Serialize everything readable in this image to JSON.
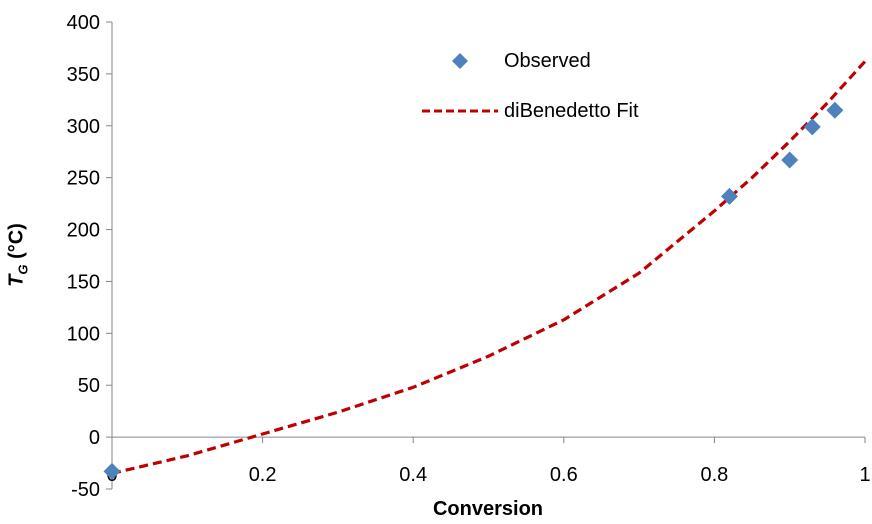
{
  "chart_data": {
    "type": "scatter",
    "xlabel": "Conversion",
    "ylabel": {
      "prefix": "T",
      "subscript": "G",
      "suffix": " (°C)"
    },
    "xlim": [
      0,
      1
    ],
    "ylim": [
      -50,
      400
    ],
    "xticks": [
      0,
      0.2,
      0.4,
      0.6,
      0.8,
      1
    ],
    "xtick_labels": [
      "0",
      "0.2",
      "0.4",
      "0.6",
      "0.8",
      "1"
    ],
    "yticks": [
      -50,
      0,
      50,
      100,
      150,
      200,
      250,
      300,
      350,
      400
    ],
    "ytick_labels": [
      "-50",
      "0",
      "50",
      "100",
      "150",
      "200",
      "250",
      "300",
      "350",
      "400"
    ],
    "grid": false,
    "legend_position": "top-right",
    "series": [
      {
        "name": "Observed",
        "kind": "markers",
        "marker": "diamond",
        "color": "#4F81BD",
        "x": [
          0,
          0.82,
          0.9,
          0.93,
          0.96
        ],
        "y": [
          -33,
          232,
          267,
          299,
          315
        ]
      },
      {
        "name": "diBenedetto Fit",
        "kind": "dashed-line",
        "color": "#C00000",
        "x": [
          0,
          0.1,
          0.2,
          0.3,
          0.4,
          0.5,
          0.6,
          0.7,
          0.8,
          0.85,
          0.9,
          0.95,
          1.0
        ],
        "y": [
          -35,
          -18,
          3,
          24,
          48,
          78,
          113,
          158,
          218,
          250,
          285,
          322,
          362
        ]
      }
    ]
  }
}
